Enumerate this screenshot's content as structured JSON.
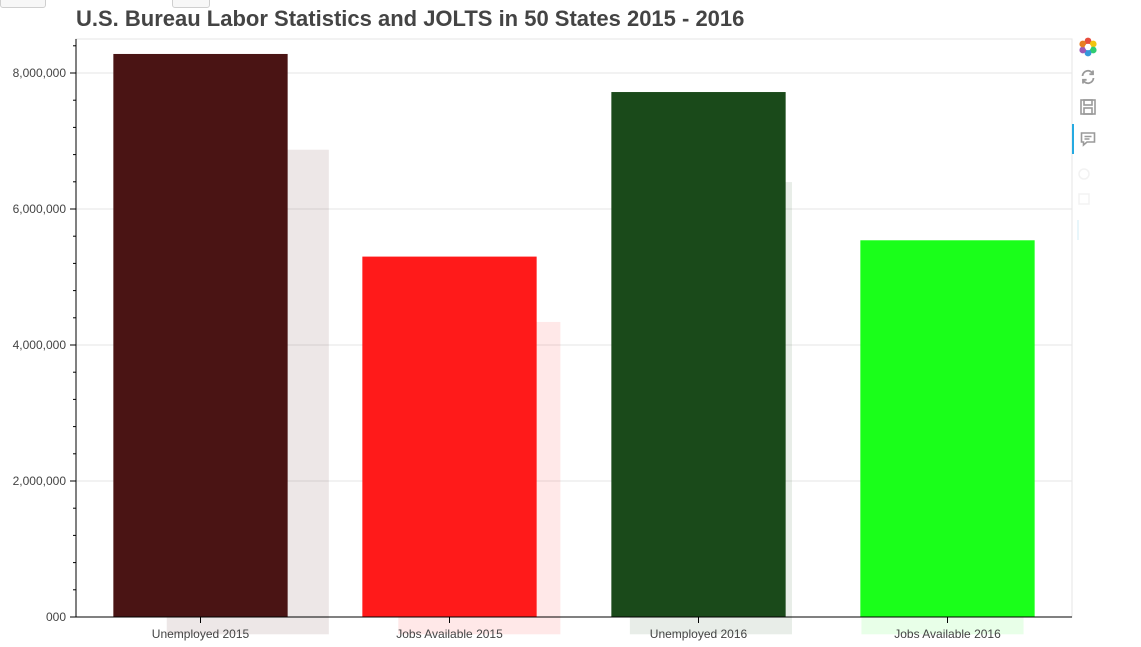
{
  "title": "U.S. Bureau Labor Statistics and JOLTS in 50 States 2015 - 2016",
  "toolbar": {
    "items": [
      {
        "name": "bokeh-logo-icon"
      },
      {
        "name": "reset-icon"
      },
      {
        "name": "save-icon"
      },
      {
        "name": "hover-icon"
      }
    ]
  },
  "chart_data": {
    "type": "bar",
    "title": "U.S. Bureau Labor Statistics and JOLTS in 50 States 2015 - 2016",
    "categories": [
      "Unemployed 2015",
      "Jobs Available 2015",
      "Unemployed 2016",
      "Jobs Available 2016"
    ],
    "values": [
      8280000,
      5300000,
      7720000,
      5540000
    ],
    "colors": [
      "#4a1414",
      "#ff1a1a",
      "#1a4a1a",
      "#1aff1a"
    ],
    "ylim": [
      0,
      8500000
    ],
    "yticks": [
      0,
      2000000,
      4000000,
      6000000,
      8000000
    ],
    "ytick_labels": [
      "000",
      "2,000,000",
      "4,000,000",
      "6,000,000",
      "8,000,000"
    ],
    "xlabel": "",
    "ylabel": "",
    "grid": true
  }
}
